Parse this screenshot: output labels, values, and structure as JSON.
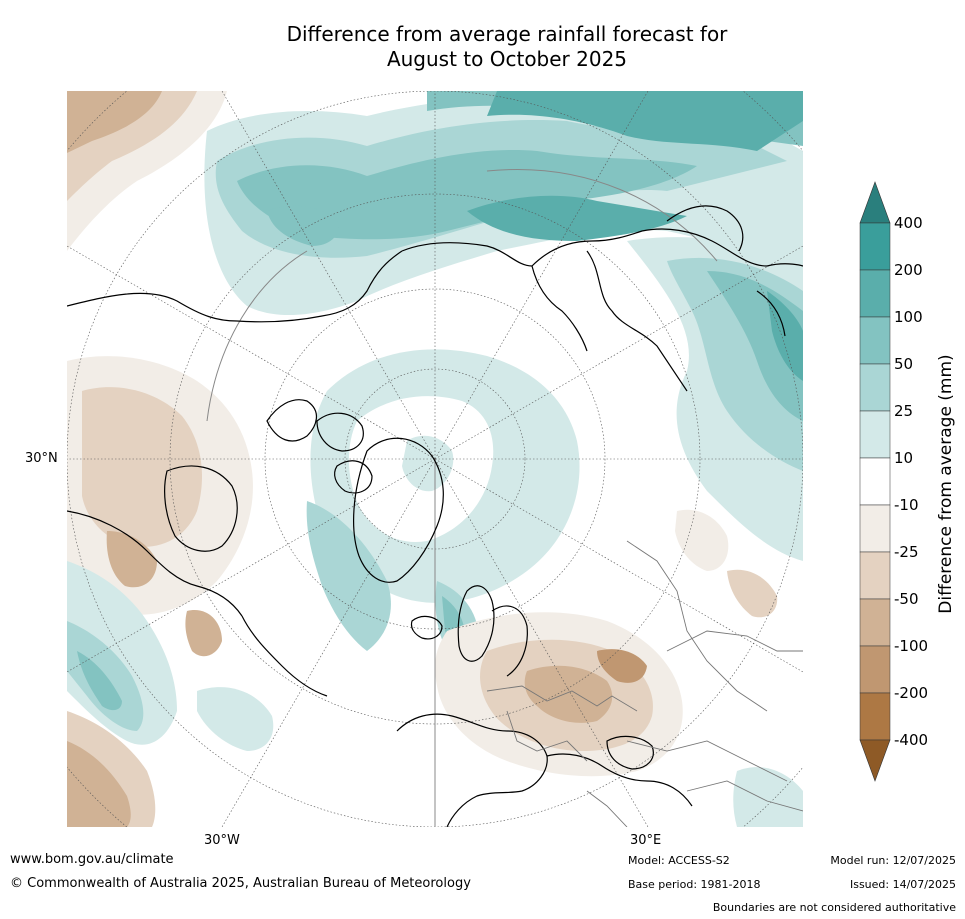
{
  "title_line1": "Difference from average rainfall forecast for",
  "title_line2": "August to October 2025",
  "map": {
    "projection": "north-polar-stereographic",
    "lat_label": "30°N",
    "lon_labels": [
      "30°W",
      "30°E"
    ],
    "colors": {
      "wet_400": "#2a8a88",
      "wet_200": "#3a9e9b",
      "wet_100": "#5aaeab",
      "wet_50": "#83c3c1",
      "wet_25": "#aad6d5",
      "wet_10": "#d3e9e8",
      "neutral": "#ffffff",
      "dry_10": "#f2ede7",
      "dry_25": "#e4d2c1",
      "dry_50": "#d0b295",
      "dry_100": "#c09771",
      "dry_200": "#ad7844"
    }
  },
  "colorbar": {
    "title": "Difference from average (mm)",
    "ticks": [
      "400",
      "200",
      "100",
      "50",
      "25",
      "10",
      "-10",
      "-25",
      "-50",
      "-100",
      "-200",
      "-400"
    ],
    "bins": [
      "#2a7f7d",
      "#3a9e9b",
      "#5aaeab",
      "#83c3c1",
      "#aad6d5",
      "#d3e9e8",
      "#ffffff",
      "#f2ede7",
      "#e4d2c1",
      "#d0b295",
      "#c09771",
      "#ad7844",
      "#8e5a26"
    ]
  },
  "footer": {
    "website": "www.bom.gov.au/climate",
    "copyright": "© Commonwealth of Australia 2025, Australian Bureau of Meteorology",
    "model": "Model: ACCESS-S2",
    "base_period": "Base period: 1981-2018",
    "model_run": "Model run: 12/07/2025",
    "issued": "Issued: 14/07/2025",
    "disclaimer": "Boundaries are not considered authoritative"
  }
}
